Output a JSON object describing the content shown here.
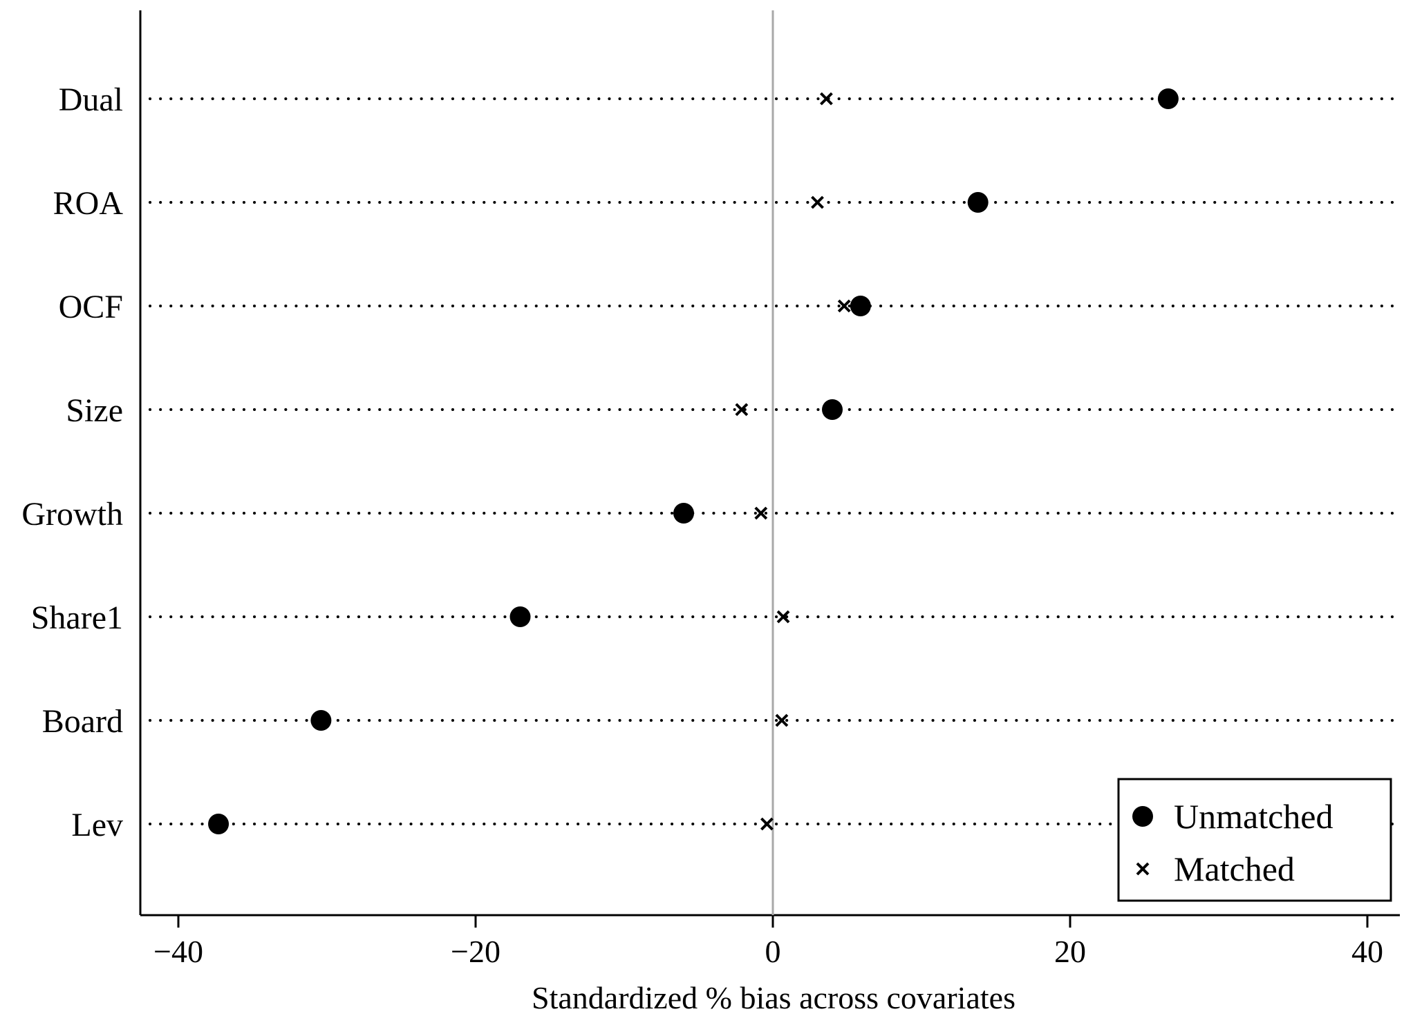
{
  "chart_data": {
    "type": "scatter",
    "xlabel": "Standardized % bias across covariates",
    "xlim": [
      -40,
      40
    ],
    "xticks": [
      -40,
      -20,
      0,
      20,
      40
    ],
    "xtick_labels": [
      "−40",
      "−20",
      "0",
      "20",
      "40"
    ],
    "grid": false,
    "legend_position": "bottom-right",
    "categories": [
      "Dual",
      "ROA",
      "OCF",
      "Size",
      "Growth",
      "Share1",
      "Board",
      "Lev"
    ],
    "series": [
      {
        "name": "Unmatched",
        "marker": "circle",
        "values": [
          26.6,
          13.8,
          5.9,
          4.0,
          -6.0,
          -17.0,
          -30.4,
          -37.3
        ]
      },
      {
        "name": "Matched",
        "marker": "x",
        "values": [
          3.6,
          3.0,
          4.8,
          -2.1,
          -0.8,
          0.7,
          0.6,
          -0.4
        ]
      }
    ],
    "colors": {
      "marker": "#000000",
      "zero_line": "#a8a8a8"
    }
  }
}
